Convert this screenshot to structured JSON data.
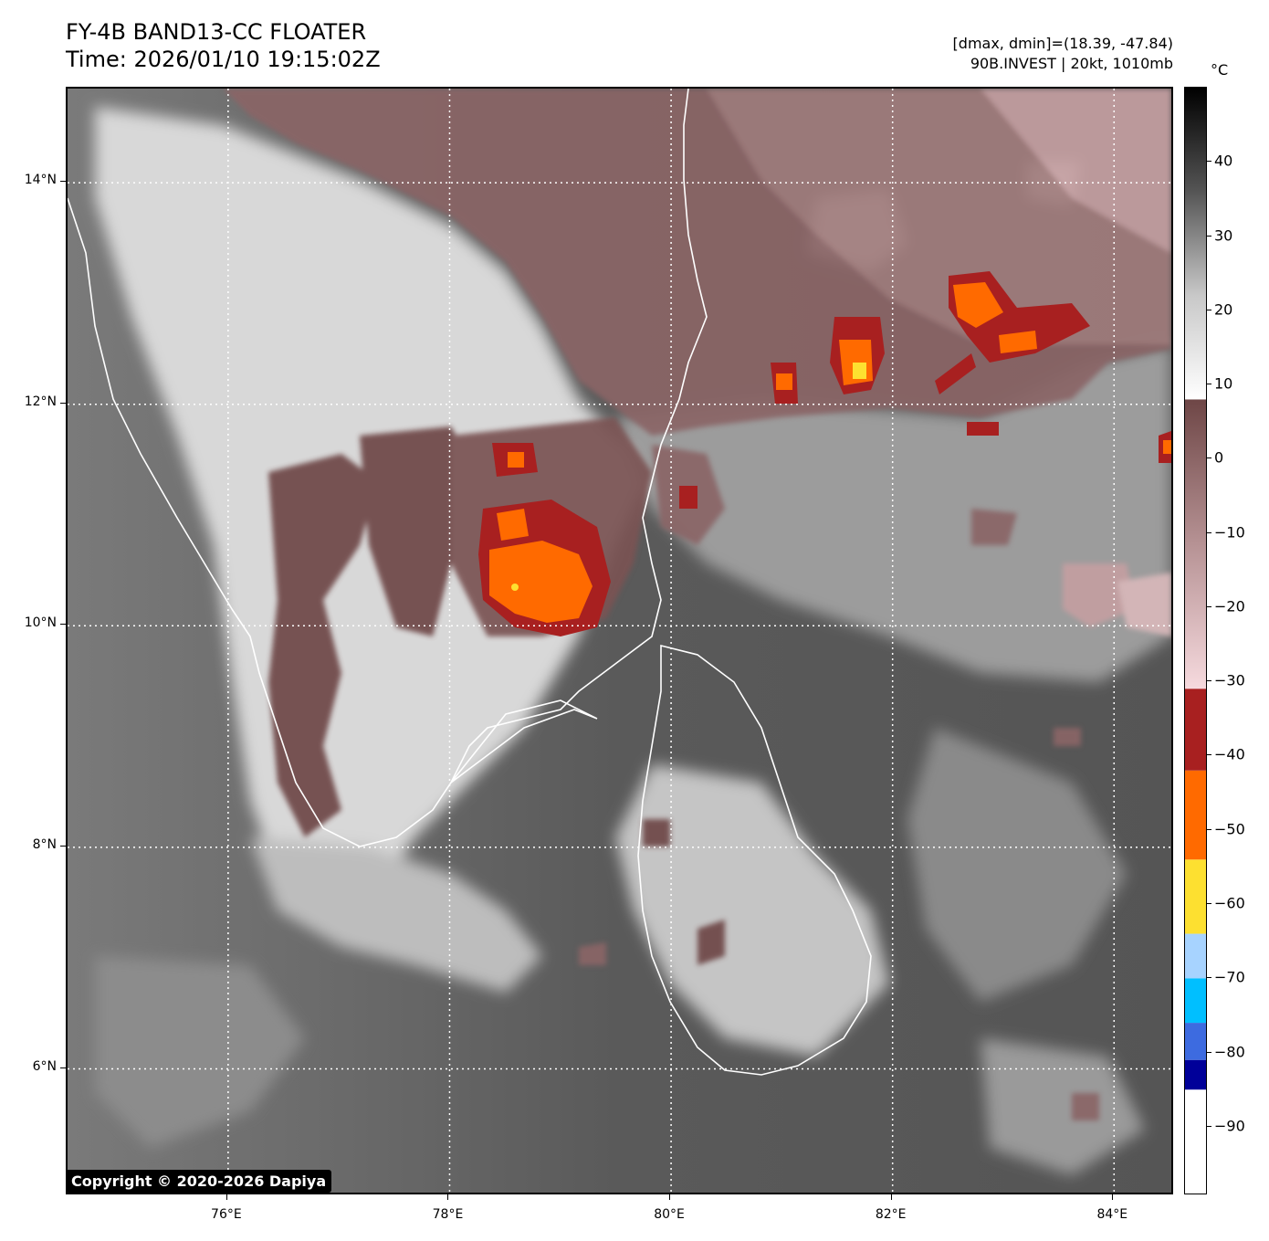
{
  "header": {
    "title_line1": "FY-4B BAND13-CC FLOATER",
    "title_line2": "Time: 2026/01/10 19:15:02Z",
    "meta_line1": "[dmax, dmin]=(18.39, -47.84)",
    "meta_line2": "90B.INVEST | 20kt, 1010mb"
  },
  "map": {
    "lon_range": [
      74.55,
      84.55
    ],
    "lat_range": [
      4.85,
      14.85
    ],
    "lon_ticks": [
      {
        "value": 76,
        "label": "76°E"
      },
      {
        "value": 78,
        "label": "78°E"
      },
      {
        "value": 80,
        "label": "80°E"
      },
      {
        "value": 82,
        "label": "82°E"
      },
      {
        "value": 84,
        "label": "84°E"
      }
    ],
    "lat_ticks": [
      {
        "value": 14,
        "label": "14°N"
      },
      {
        "value": 12,
        "label": "12°N"
      },
      {
        "value": 10,
        "label": "10°N"
      },
      {
        "value": 8,
        "label": "8°N"
      },
      {
        "value": 6,
        "label": "6°N"
      }
    ],
    "grid": "dotted white",
    "coastlines": "white"
  },
  "colorbar": {
    "unit": "°C",
    "range": [
      -99,
      50
    ],
    "ticks": [
      {
        "value": 40,
        "label": "40"
      },
      {
        "value": 30,
        "label": "30"
      },
      {
        "value": 20,
        "label": "20"
      },
      {
        "value": 10,
        "label": "10"
      },
      {
        "value": 0,
        "label": "0"
      },
      {
        "value": -10,
        "label": "−10"
      },
      {
        "value": -20,
        "label": "−20"
      },
      {
        "value": -30,
        "label": "−30"
      },
      {
        "value": -40,
        "label": "−40"
      },
      {
        "value": -50,
        "label": "−50"
      },
      {
        "value": -60,
        "label": "−60"
      },
      {
        "value": -70,
        "label": "−70"
      },
      {
        "value": -80,
        "label": "−80"
      },
      {
        "value": -90,
        "label": "−90"
      }
    ],
    "segments": [
      {
        "from": -99,
        "to": -85,
        "color": "#ffffff"
      },
      {
        "from": -85,
        "to": -81,
        "color": "#000099"
      },
      {
        "from": -81,
        "to": -76,
        "color": "#3d6be0"
      },
      {
        "from": -76,
        "to": -70,
        "color": "#00bfff"
      },
      {
        "from": -70,
        "to": -64,
        "color": "#a7d3ff"
      },
      {
        "from": -64,
        "to": -54,
        "color": "#fde030"
      },
      {
        "from": -54,
        "to": -42,
        "color": "#ff6a00"
      },
      {
        "from": -42,
        "to": -31,
        "color": "#a82020"
      }
    ],
    "gradients": [
      {
        "from": -31,
        "to": 8,
        "colors": [
          "#f6dade",
          "#b69294",
          "#6e4646"
        ]
      },
      {
        "from": 8,
        "to": 50,
        "colors": [
          "#ffffff",
          "#c8c8c8",
          "#555555",
          "#000000"
        ]
      }
    ]
  },
  "footer": {
    "copyright": "Copyright © 2020-2026 Dapiya"
  }
}
